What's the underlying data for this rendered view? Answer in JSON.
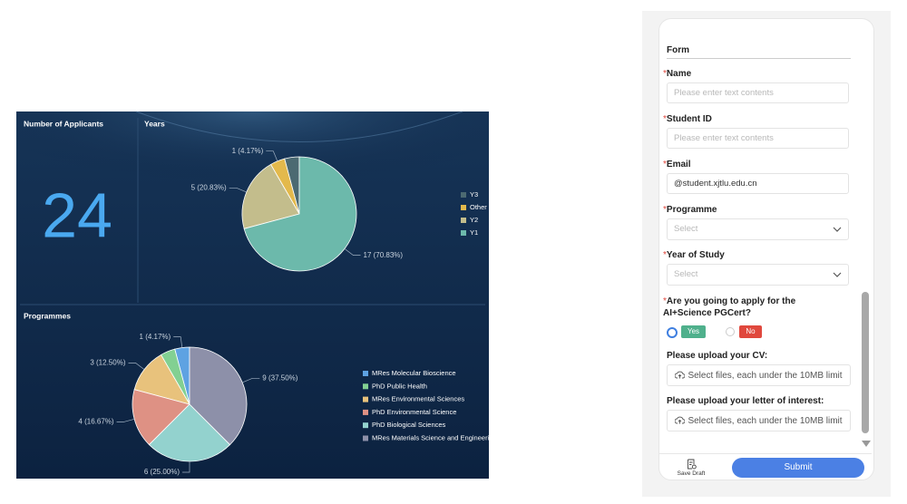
{
  "dashboard": {
    "applicants": {
      "title": "Number of Applicants",
      "value": 24
    },
    "charts": [
      {
        "type": "pie",
        "title": "Years",
        "categories": [
          "Y3",
          "Other",
          "Y2",
          "Y1"
        ],
        "values": [
          1,
          1,
          5,
          17
        ],
        "value_labels": [
          null,
          "1 (4.17%)",
          "5 (20.83%)",
          "17 (70.83%)"
        ],
        "colors": [
          "#4c6a72",
          "#e3b94c",
          "#c3bd8c",
          "#6cb9ab"
        ]
      },
      {
        "type": "pie",
        "title": "Programmes",
        "categories": [
          "MRes Molecular Bioscience",
          "PhD Public Health",
          "MRes Environmental Sciences",
          "PhD Environmental Science",
          "PhD Biological Sciences",
          "MRes Materials Science and Engineering"
        ],
        "values": [
          1,
          1,
          3,
          4,
          6,
          9
        ],
        "value_labels": [
          "1 (4.17%)",
          null,
          "3 (12.50%)",
          "4 (16.67%)",
          "6 (25.00%)",
          "9 (37.50%)"
        ],
        "colors": [
          "#5ea2e2",
          "#82d092",
          "#e8c27c",
          "#de9184",
          "#93d2ce",
          "#8d90a9"
        ]
      }
    ]
  },
  "form": {
    "title": "Form",
    "fields": [
      {
        "required_mark": "*",
        "label": "Name",
        "placeholder": "Please enter text contents"
      },
      {
        "required_mark": "*",
        "label": "Student ID",
        "placeholder": "Please enter text contents"
      },
      {
        "required_mark": "*",
        "label": "Email",
        "value": "@student.xjtlu.edu.cn"
      },
      {
        "required_mark": "*",
        "label": "Programme",
        "placeholder": "Select"
      },
      {
        "required_mark": "*",
        "label": "Year of Study",
        "placeholder": "Select"
      },
      {
        "required_mark": "*",
        "label": "Are you going to apply for the AI+Science PGCert?",
        "options": [
          "Yes",
          "No"
        ]
      },
      {
        "label": "Please upload your CV:",
        "upload_hint": "Select files, each under the 10MB limit"
      },
      {
        "label": "Please upload your letter of interest:",
        "upload_hint": "Select files, each under the 10MB limit"
      }
    ],
    "save_draft": "Save Draft",
    "submit": "Submit"
  }
}
